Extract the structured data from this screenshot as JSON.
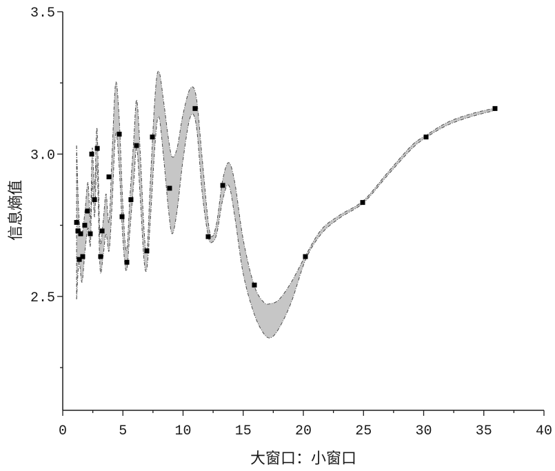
{
  "chart_data": {
    "type": "scatter",
    "xlabel": "大窗口：小窗口",
    "ylabel": "信息熵值",
    "xlim": [
      0,
      40
    ],
    "ylim": [
      2.1,
      3.5
    ],
    "xticks": [
      0,
      5,
      10,
      15,
      20,
      25,
      30,
      35,
      40
    ],
    "x_tick_labels": [
      "0",
      "5",
      "10",
      "15",
      "20",
      "25",
      "30",
      "35",
      "40"
    ],
    "yticks": [
      2.5,
      3.0,
      3.5
    ],
    "y_tick_labels": [
      "2.5",
      "3.0",
      "3.5"
    ],
    "grid": false,
    "legend": "none",
    "colors": {
      "points": "#000000",
      "band_fill": "#c6c6c6",
      "band_edge": "#4a4a4a"
    },
    "series": [
      {
        "x": [
          1.15,
          1.26,
          1.38,
          1.49,
          1.66,
          1.83,
          2.06,
          2.29,
          2.41,
          2.64,
          2.87,
          3.15,
          3.27,
          3.84,
          4.7,
          4.93,
          5.33,
          5.67,
          6.13,
          6.99,
          7.45,
          8.88,
          11.0,
          12.09,
          13.3,
          15.93,
          20.17,
          24.93,
          30.2,
          35.93
        ],
        "y": [
          2.76,
          2.73,
          2.63,
          2.72,
          2.64,
          2.75,
          2.8,
          2.72,
          3.0,
          2.84,
          3.02,
          2.64,
          2.73,
          2.92,
          3.07,
          2.78,
          2.62,
          2.84,
          3.03,
          2.66,
          3.06,
          2.88,
          3.16,
          2.71,
          2.89,
          2.54,
          2.64,
          2.83,
          3.06,
          3.16
        ]
      }
    ],
    "band": {
      "x": [
        1.15,
        1.35,
        1.6,
        1.85,
        2.1,
        2.3,
        2.45,
        2.65,
        2.85,
        3.1,
        3.35,
        3.6,
        3.85,
        4.1,
        4.4,
        4.7,
        5.0,
        5.3,
        5.6,
        5.9,
        6.15,
        6.45,
        6.75,
        7.0,
        7.3,
        7.7,
        8.0,
        8.4,
        8.8,
        9.1,
        9.5,
        10.0,
        10.6,
        11.1,
        11.6,
        12.1,
        12.4,
        12.8,
        13.3,
        13.8,
        14.3,
        15.0,
        15.9,
        16.7,
        17.3,
        18.0,
        19.0,
        20.2,
        21.5,
        23.0,
        25.0,
        27.0,
        29.0,
        30.2,
        32.0,
        34.0,
        36.0
      ],
      "upper": [
        3.03,
        2.78,
        2.72,
        2.8,
        2.9,
        2.76,
        3.02,
        2.88,
        3.09,
        2.7,
        2.76,
        2.86,
        2.76,
        3.0,
        3.25,
        3.12,
        2.82,
        2.66,
        2.86,
        3.05,
        3.19,
        3.0,
        2.74,
        2.66,
        2.92,
        3.22,
        3.29,
        3.18,
        3.05,
        2.99,
        3.02,
        3.14,
        3.23,
        3.2,
        2.98,
        2.76,
        2.71,
        2.76,
        2.91,
        2.97,
        2.9,
        2.7,
        2.54,
        2.48,
        2.475,
        2.49,
        2.55,
        2.645,
        2.735,
        2.785,
        2.837,
        2.935,
        3.03,
        3.066,
        3.112,
        3.142,
        3.162
      ],
      "lower": [
        2.49,
        2.62,
        2.55,
        2.66,
        2.74,
        2.68,
        2.9,
        2.78,
        2.96,
        2.6,
        2.64,
        2.72,
        2.66,
        2.82,
        3.07,
        2.95,
        2.7,
        2.59,
        2.74,
        2.9,
        3.02,
        2.84,
        2.63,
        2.6,
        2.78,
        3.05,
        3.13,
        2.98,
        2.8,
        2.72,
        2.8,
        2.98,
        3.13,
        3.1,
        2.86,
        2.71,
        2.69,
        2.72,
        2.84,
        2.89,
        2.78,
        2.58,
        2.44,
        2.37,
        2.355,
        2.39,
        2.48,
        2.63,
        2.72,
        2.775,
        2.829,
        2.925,
        3.018,
        3.058,
        3.102,
        3.132,
        3.154
      ]
    }
  }
}
